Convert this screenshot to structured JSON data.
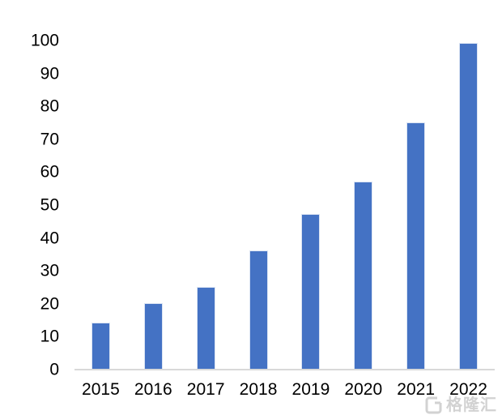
{
  "chart_data": {
    "type": "bar",
    "categories": [
      "2015",
      "2016",
      "2017",
      "2018",
      "2019",
      "2020",
      "2021",
      "2022"
    ],
    "values": [
      14,
      20,
      25,
      36,
      47,
      57,
      75,
      99
    ],
    "title": "",
    "xlabel": "",
    "ylabel": "",
    "ylim": [
      0,
      100
    ],
    "yticks": [
      0,
      10,
      20,
      30,
      40,
      50,
      60,
      70,
      80,
      90,
      100
    ],
    "grid": false,
    "legend": "none",
    "bar_color": "#4472c4",
    "axis_line_color": "#d9d9d9",
    "tick_label_color": "#000000"
  },
  "watermark": {
    "icon": "gelonghui-logo",
    "text": "格隆汇",
    "color": "#d2d2d2"
  }
}
